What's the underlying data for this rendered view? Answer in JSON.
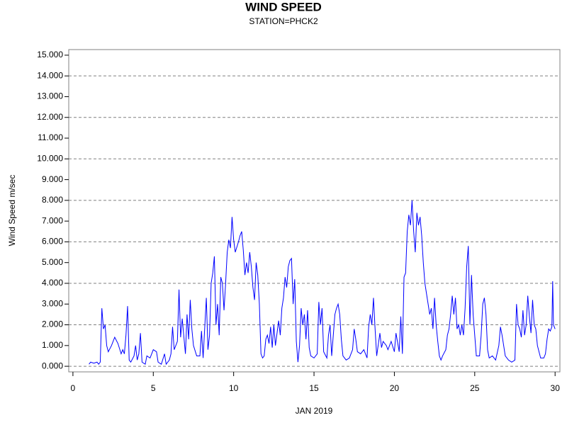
{
  "chart_data": {
    "type": "line",
    "title": "WIND SPEED",
    "subtitle": "STATION=PHCK2",
    "x_label": "JAN 2019",
    "y_label": "Wind Speed m/sec",
    "xlim": [
      -0.26,
      30.3
    ],
    "ylim": [
      -0.27,
      15.27
    ],
    "xticks": [
      0,
      5,
      10,
      15,
      20,
      25,
      30
    ],
    "yticks": [
      {
        "value": 0,
        "label": "0.000"
      },
      {
        "value": 1,
        "label": "1.000"
      },
      {
        "value": 2,
        "label": "2.000"
      },
      {
        "value": 3,
        "label": "3.000"
      },
      {
        "value": 4,
        "label": "4.000"
      },
      {
        "value": 5,
        "label": "5.000"
      },
      {
        "value": 6,
        "label": "6.000"
      },
      {
        "value": 7,
        "label": "7.000"
      },
      {
        "value": 8,
        "label": "8.000"
      },
      {
        "value": 9,
        "label": "9.000"
      },
      {
        "value": 10,
        "label": "10.000"
      },
      {
        "value": 11,
        "label": "11.000"
      },
      {
        "value": 12,
        "label": "12.000"
      },
      {
        "value": 13,
        "label": "13.000"
      },
      {
        "value": 14,
        "label": "14.000"
      },
      {
        "value": 15,
        "label": "15.000"
      }
    ],
    "ygrid": [
      0,
      2,
      4,
      6,
      8,
      10,
      12,
      14
    ],
    "color": "#0000ff",
    "x": [
      1.0,
      1.1,
      1.3,
      1.5,
      1.6,
      1.7,
      1.8,
      1.9,
      2.0,
      2.1,
      2.2,
      2.4,
      2.6,
      2.8,
      3.0,
      3.1,
      3.2,
      3.3,
      3.4,
      3.5,
      3.6,
      3.8,
      3.9,
      4.0,
      4.1,
      4.2,
      4.3,
      4.5,
      4.6,
      4.8,
      5.0,
      5.2,
      5.3,
      5.5,
      5.7,
      5.8,
      6.0,
      6.1,
      6.2,
      6.3,
      6.5,
      6.6,
      6.7,
      6.8,
      7.0,
      7.1,
      7.2,
      7.3,
      7.4,
      7.5,
      7.7,
      7.9,
      8.0,
      8.1,
      8.3,
      8.4,
      8.5,
      8.6,
      8.7,
      8.8,
      8.9,
      9.0,
      9.1,
      9.2,
      9.3,
      9.4,
      9.5,
      9.6,
      9.7,
      9.8,
      9.9,
      10.0,
      10.1,
      10.3,
      10.4,
      10.5,
      10.6,
      10.7,
      10.8,
      10.9,
      11.0,
      11.1,
      11.2,
      11.3,
      11.4,
      11.5,
      11.6,
      11.7,
      11.8,
      11.9,
      12.0,
      12.1,
      12.2,
      12.3,
      12.4,
      12.5,
      12.6,
      12.7,
      12.8,
      12.9,
      13.0,
      13.1,
      13.2,
      13.3,
      13.4,
      13.5,
      13.6,
      13.7,
      13.8,
      13.9,
      14.0,
      14.1,
      14.2,
      14.3,
      14.4,
      14.5,
      14.6,
      14.7,
      14.8,
      15.0,
      15.2,
      15.3,
      15.4,
      15.5,
      15.6,
      15.8,
      15.9,
      16.0,
      16.1,
      16.3,
      16.4,
      16.5,
      16.6,
      16.7,
      16.8,
      17.0,
      17.2,
      17.4,
      17.5,
      17.6,
      17.7,
      17.9,
      18.1,
      18.3,
      18.4,
      18.5,
      18.6,
      18.7,
      18.8,
      18.9,
      19.1,
      19.2,
      19.3,
      19.5,
      19.6,
      19.8,
      20.0,
      20.1,
      20.3,
      20.4,
      20.5,
      20.6,
      20.7,
      20.8,
      20.9,
      21.0,
      21.1,
      21.2,
      21.3,
      21.4,
      21.5,
      21.6,
      21.7,
      21.8,
      21.9,
      22.0,
      22.1,
      22.2,
      22.3,
      22.4,
      22.5,
      22.6,
      22.7,
      22.8,
      22.9,
      23.0,
      23.2,
      23.3,
      23.4,
      23.5,
      23.6,
      23.7,
      23.8,
      23.9,
      24.0,
      24.1,
      24.2,
      24.3,
      24.4,
      24.5,
      24.6,
      24.7,
      24.8,
      24.9,
      25.0,
      25.1,
      25.3,
      25.4,
      25.5,
      25.6,
      25.7,
      25.8,
      25.9,
      26.1,
      26.3,
      26.5,
      26.6,
      26.7,
      26.9,
      27.1,
      27.3,
      27.5,
      27.6,
      27.7,
      27.8,
      27.9,
      28.0,
      28.1,
      28.2,
      28.3,
      28.4,
      28.5,
      28.6,
      28.7,
      28.8,
      28.9,
      29.0,
      29.1,
      29.3,
      29.4,
      29.5,
      29.6,
      29.7,
      29.8,
      29.85,
      29.9,
      30.0
    ],
    "values": [
      0.1,
      0.2,
      0.15,
      0.2,
      0.1,
      0.2,
      2.8,
      1.8,
      2.0,
      1.0,
      0.7,
      1.0,
      1.4,
      1.1,
      0.6,
      0.8,
      0.6,
      1.5,
      2.9,
      0.3,
      0.2,
      0.5,
      1.0,
      0.3,
      0.6,
      1.6,
      0.2,
      0.1,
      0.5,
      0.4,
      0.8,
      0.7,
      0.2,
      0.1,
      0.6,
      0.1,
      0.3,
      0.6,
      1.9,
      0.8,
      1.2,
      3.7,
      1.4,
      2.3,
      0.6,
      2.5,
      1.3,
      3.2,
      1.8,
      1.0,
      0.5,
      0.5,
      1.7,
      0.4,
      3.3,
      0.8,
      1.5,
      4.0,
      4.5,
      5.3,
      2.0,
      3.0,
      1.5,
      4.3,
      4.0,
      2.7,
      4.0,
      5.5,
      6.1,
      5.7,
      7.2,
      6.1,
      5.5,
      6.0,
      6.3,
      6.5,
      5.6,
      4.4,
      5.0,
      4.5,
      5.5,
      4.8,
      3.8,
      3.2,
      5.0,
      4.4,
      3.0,
      0.6,
      0.4,
      0.5,
      1.3,
      1.5,
      1.1,
      1.9,
      0.9,
      2.0,
      1.0,
      1.6,
      2.2,
      1.5,
      2.8,
      3.3,
      4.3,
      3.8,
      4.8,
      5.1,
      5.2,
      3.0,
      4.2,
      1.2,
      0.2,
      1.0,
      2.8,
      2.0,
      2.5,
      1.3,
      2.7,
      0.9,
      0.5,
      0.4,
      0.6,
      3.1,
      2.0,
      2.8,
      0.7,
      0.4,
      1.5,
      2.0,
      0.5,
      2.5,
      2.8,
      3.0,
      2.5,
      1.3,
      0.5,
      0.3,
      0.4,
      0.8,
      1.8,
      1.3,
      0.7,
      0.6,
      0.8,
      0.4,
      1.9,
      2.5,
      2.0,
      3.3,
      1.8,
      0.5,
      1.6,
      0.9,
      1.2,
      1.0,
      0.8,
      1.2,
      0.7,
      1.6,
      0.7,
      2.4,
      0.6,
      4.3,
      4.5,
      6.5,
      7.3,
      6.8,
      8.0,
      6.5,
      5.5,
      7.4,
      6.8,
      7.2,
      6.3,
      5.0,
      4.0,
      3.5,
      3.0,
      2.5,
      2.8,
      1.8,
      3.3,
      2.0,
      1.2,
      0.5,
      0.3,
      0.5,
      0.8,
      1.5,
      1.8,
      2.5,
      3.4,
      2.5,
      3.3,
      1.8,
      2.0,
      1.5,
      2.0,
      1.5,
      2.8,
      4.8,
      5.8,
      2.0,
      4.4,
      2.5,
      1.5,
      0.5,
      0.5,
      1.5,
      3.0,
      3.3,
      2.5,
      0.8,
      0.4,
      0.5,
      0.3,
      1.0,
      1.9,
      1.5,
      0.5,
      0.3,
      0.2,
      0.3,
      3.0,
      2.0,
      1.8,
      1.4,
      2.7,
      1.5,
      2.0,
      3.4,
      2.4,
      1.6,
      3.2,
      2.0,
      1.8,
      1.0,
      0.7,
      0.4,
      0.4,
      0.6,
      1.3,
      1.8,
      1.7,
      1.9,
      4.1,
      2.0,
      1.8
    ]
  }
}
